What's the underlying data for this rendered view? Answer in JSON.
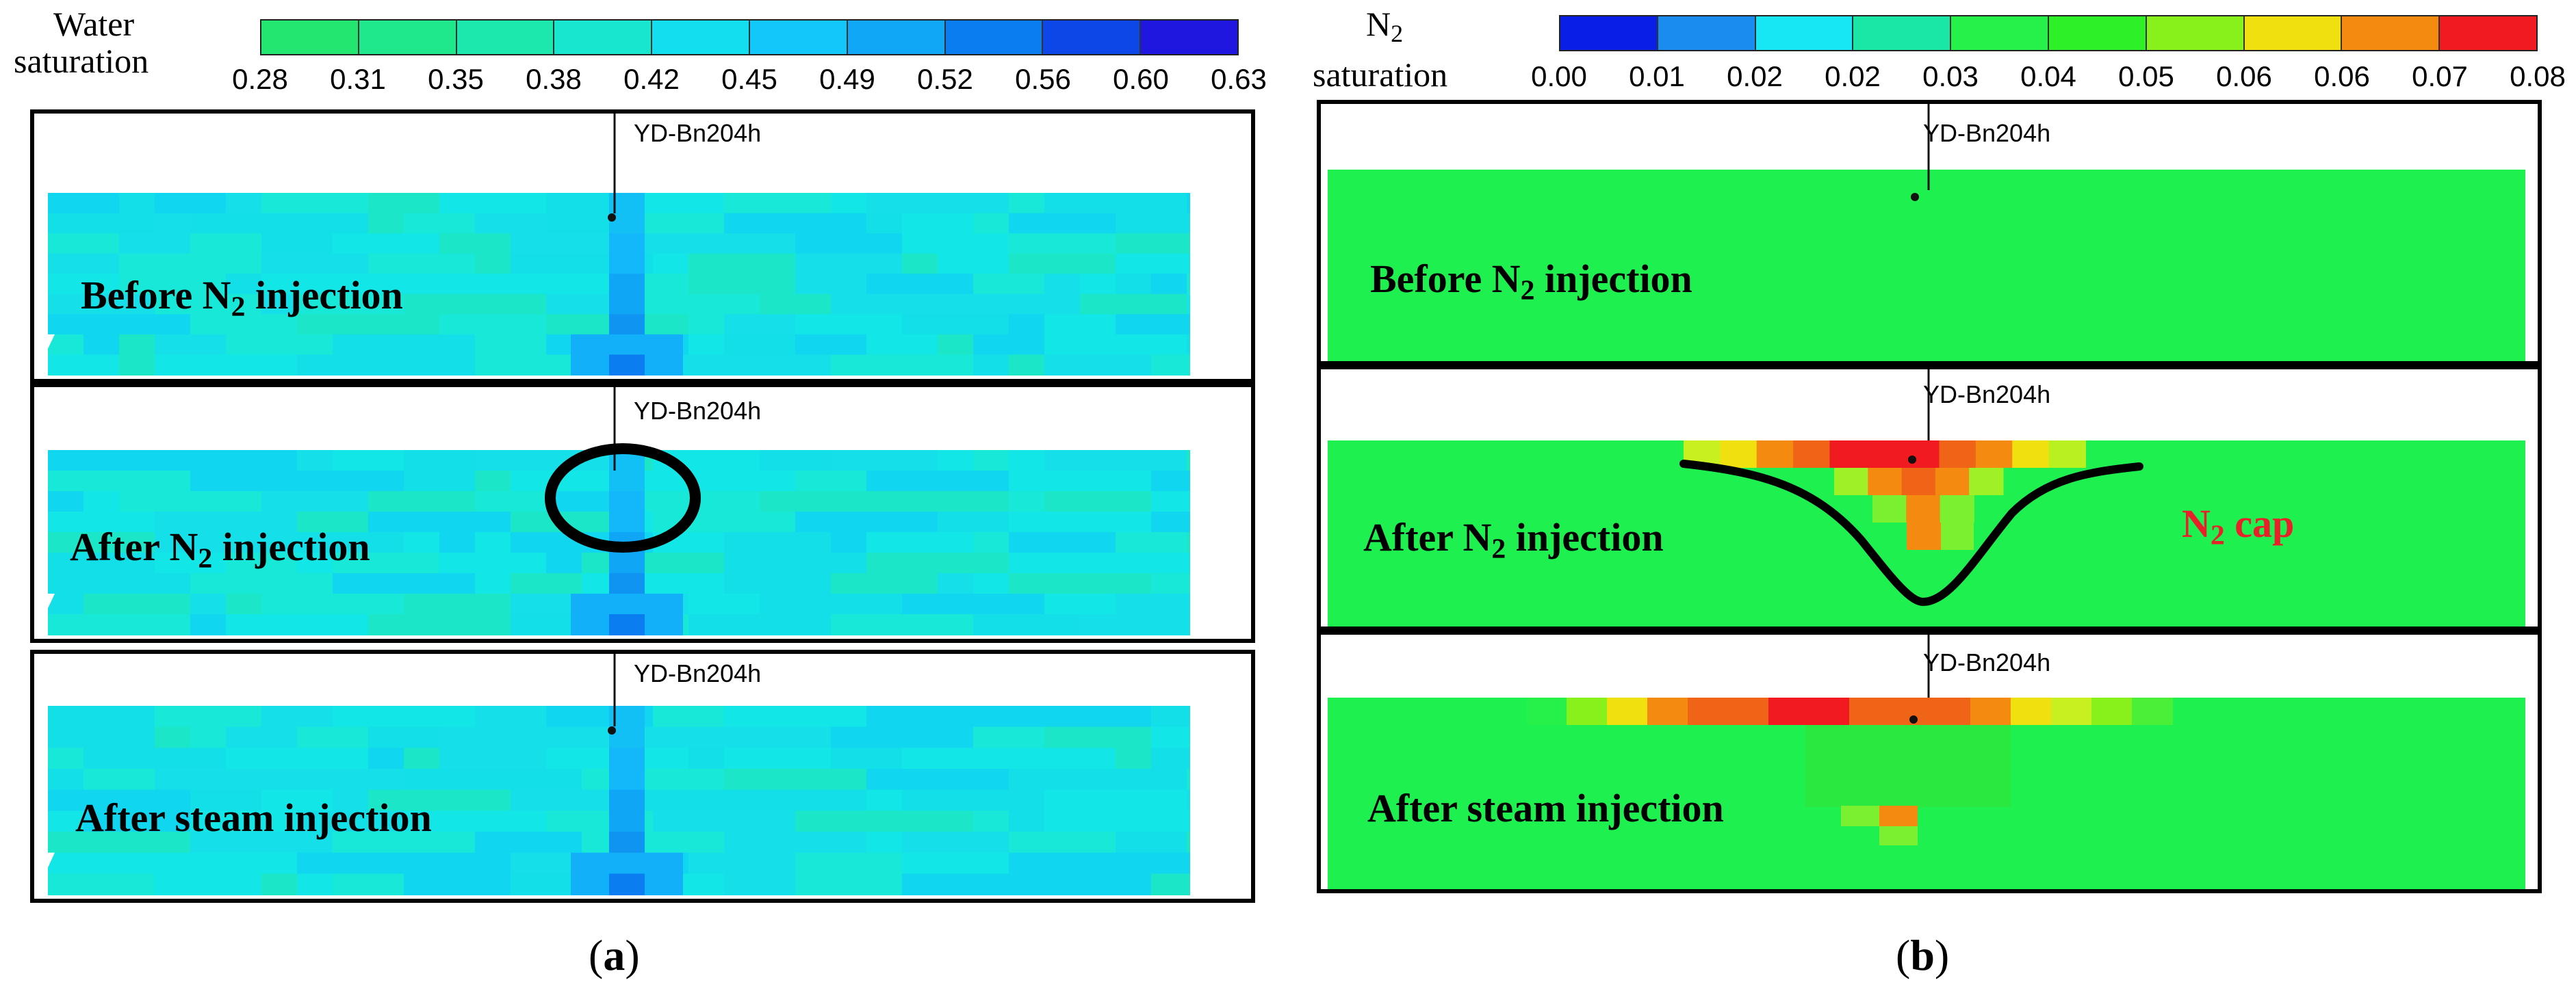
{
  "panel_a": {
    "legend_title_line1": "Water",
    "legend_title_line2": "saturation",
    "legend_ticks": [
      "0.28",
      "0.31",
      "0.35",
      "0.38",
      "0.42",
      "0.45",
      "0.49",
      "0.52",
      "0.56",
      "0.60",
      "0.63"
    ],
    "legend_colors": [
      "#22e66f",
      "#1fe88c",
      "#1ce8ad",
      "#19e6cf",
      "#11dff0",
      "#12c8fb",
      "#0fa7f6",
      "#0a7df0",
      "#0d47e8",
      "#1f17e0"
    ],
    "panels": [
      {
        "label_pre": "Before N",
        "label_sub": "2",
        "label_post": " injection",
        "well": "YD-Bn204h"
      },
      {
        "label_pre": "After N",
        "label_sub": "2",
        "label_post": " injection",
        "well": "YD-Bn204h"
      },
      {
        "label_pre": "After steam injection",
        "label_sub": "",
        "label_post": "",
        "well": "YD-Bn204h"
      }
    ],
    "caption_open": "(",
    "caption_letter": "a",
    "caption_close": ")"
  },
  "panel_b": {
    "legend_title_line1_pre": "N",
    "legend_title_line1_sub": "2",
    "legend_title_line2": "saturation",
    "legend_ticks": [
      "0.00",
      "0.01",
      "0.02",
      "0.02",
      "0.03",
      "0.04",
      "0.05",
      "0.06",
      "0.06",
      "0.07",
      "0.08"
    ],
    "legend_colors": [
      "#0a1fe6",
      "#1a8cf0",
      "#17e6f5",
      "#1ae6a5",
      "#26f04a",
      "#2ef028",
      "#88f01a",
      "#f0e010",
      "#f58a10",
      "#f01a20"
    ],
    "panels": [
      {
        "label_pre": "Before N",
        "label_sub": "2",
        "label_post": " injection",
        "well": "YD-Bn204h"
      },
      {
        "label_pre": "After N",
        "label_sub": "2",
        "label_post": " injection",
        "well": "YD-Bn204h"
      },
      {
        "label_pre": "After steam injection",
        "label_sub": "",
        "label_post": "",
        "well": "YD-Bn204h"
      }
    ],
    "annotation_pre": "N",
    "annotation_sub": "2",
    "annotation_post": " cap",
    "annotation_color": "#e8202a",
    "caption_open": "(",
    "caption_letter": "b",
    "caption_close": ")"
  }
}
